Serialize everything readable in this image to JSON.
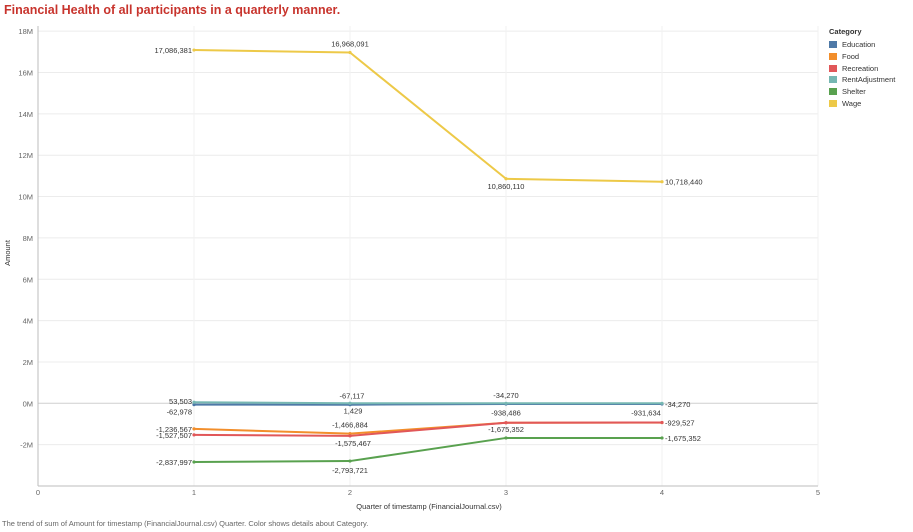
{
  "title": "Financial Health of all participants in a quarterly manner.",
  "caption": "The trend of sum of Amount for timestamp (FinancialJournal.csv) Quarter.  Color shows details about Category.",
  "chart_data": {
    "type": "line",
    "title": "Financial Health of all participants in a quarterly manner.",
    "xlabel": "Quarter of timestamp (FinancialJournal.csv)",
    "ylabel": "Amount",
    "x": [
      1,
      2,
      3,
      4
    ],
    "xlim": [
      0,
      5
    ],
    "xticks": [
      "0",
      "1",
      "2",
      "3",
      "4",
      "5"
    ],
    "ylim": [
      -4000000,
      18000000
    ],
    "yticks": [
      {
        "value": -2000000,
        "label": "-2M"
      },
      {
        "value": 0,
        "label": "0M"
      },
      {
        "value": 2000000,
        "label": "2M"
      },
      {
        "value": 4000000,
        "label": "4M"
      },
      {
        "value": 6000000,
        "label": "6M"
      },
      {
        "value": 8000000,
        "label": "8M"
      },
      {
        "value": 10000000,
        "label": "10M"
      },
      {
        "value": 12000000,
        "label": "12M"
      },
      {
        "value": 14000000,
        "label": "14M"
      },
      {
        "value": 16000000,
        "label": "16M"
      },
      {
        "value": 18000000,
        "label": "18M"
      }
    ],
    "grid": true,
    "legend": {
      "title": "Category",
      "position": "top-right"
    },
    "series": [
      {
        "name": "Education",
        "color": "#4e79a7",
        "values": [
          -62978,
          -67117,
          -34270,
          -34270
        ],
        "labels": [
          "-62,978",
          "-67,117",
          "-34,270",
          "-34,270"
        ]
      },
      {
        "name": "Food",
        "color": "#f28e2b",
        "values": [
          -1236567,
          -1466884,
          -938486,
          -931634
        ],
        "labels": [
          "-1,236,567",
          "-1,466,884",
          "-938,486",
          "-931,634"
        ]
      },
      {
        "name": "Recreation",
        "color": "#e15759",
        "values": [
          -1527507,
          -1575467,
          -940000,
          -929527
        ],
        "labels": [
          "-1,527,507",
          "-1,575,467",
          "",
          "-929,527"
        ]
      },
      {
        "name": "RentAdjustment",
        "color": "#76b7b2",
        "values": [
          53503,
          1429,
          0,
          0
        ],
        "labels": [
          "53,503",
          "1,429",
          "",
          ""
        ]
      },
      {
        "name": "Shelter",
        "color": "#59a14f",
        "values": [
          -2837997,
          -2793721,
          -1675352,
          -1675352
        ],
        "labels": [
          "-2,837,997",
          "-2,793,721",
          "-1,675,352",
          "-1,675,352"
        ]
      },
      {
        "name": "Wage",
        "color": "#edc948",
        "values": [
          17086381,
          16968091,
          10860110,
          10718440
        ],
        "labels": [
          "17,086,381",
          "16,968,091",
          "10,860,110",
          "10,718,440"
        ]
      }
    ]
  }
}
